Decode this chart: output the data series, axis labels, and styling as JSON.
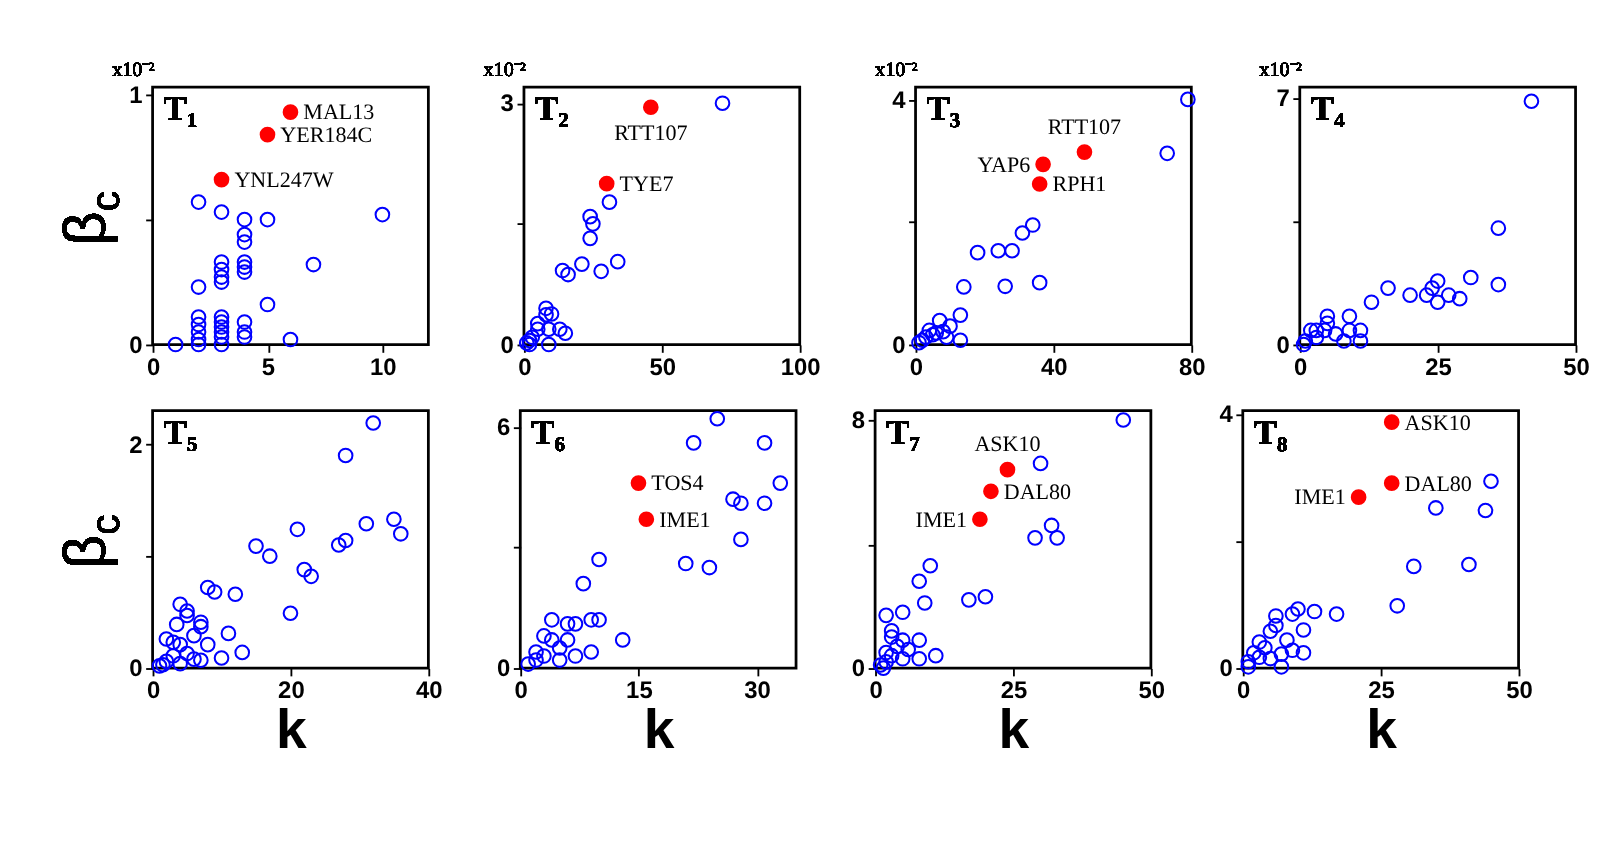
{
  "chart_data": [
    {
      "type": "scatter",
      "title": "T₁",
      "ylabel": "β$_{c}$",
      "marker": "circle",
      "xlim": [
        0,
        12
      ],
      "ylim": [
        0,
        1.03
      ],
      "xticks": [
        0,
        5,
        10
      ],
      "yticks": [
        0,
        {
          "value": 0.5,
          "label": null
        },
        1
      ],
      "annotations": [
        "x10⁻²",
        {
          "text": "MAL13",
          "x": 6,
          "y": 0.93
        },
        {
          "text": "YER184C",
          "x": 5,
          "y": 0.84
        },
        {
          "text": "YNL247W",
          "x": 3,
          "y": 0.66
        }
      ],
      "series": [
        {
          "color": "#0000ff",
          "x": [
            2,
            3,
            4,
            5,
            10,
            4,
            4,
            3,
            3,
            3,
            3,
            4,
            4,
            4,
            7,
            2,
            5,
            2,
            2,
            2,
            2,
            2,
            3,
            3,
            3,
            3,
            3,
            3,
            4,
            4,
            4,
            6,
            1
          ],
          "values": [
            0.57,
            0.53,
            0.5,
            0.5,
            0.52,
            0.44,
            0.41,
            0.33,
            0.3,
            0.27,
            0.25,
            0.33,
            0.31,
            0.29,
            0.32,
            0.23,
            0.16,
            0.11,
            0.08,
            0.05,
            0.02,
            0,
            0.11,
            0.09,
            0.07,
            0.05,
            0.03,
            0,
            0.09,
            0.05,
            0.03,
            0.02,
            0
          ]
        },
        {
          "color": "#ff0000",
          "x": [
            6,
            5,
            3
          ],
          "values": [
            0.93,
            0.84,
            0.66
          ]
        }
      ]
    },
    {
      "type": "scatter",
      "title": "T₂",
      "marker": "circle",
      "xlim": [
        0,
        100
      ],
      "ylim": [
        0,
        3.2
      ],
      "xticks": [
        0,
        50,
        100
      ],
      "yticks": [
        0,
        {
          "value": 1.5,
          "label": null
        },
        3
      ],
      "annotations": [
        "x10⁻²",
        {
          "text": "RTT107",
          "x": 46,
          "y": 2.95
        },
        {
          "text": "TYE7",
          "x": 30,
          "y": 2.0
        }
      ],
      "series": [
        {
          "color": "#0000ff",
          "x": [
            72,
            31,
            24,
            25,
            24,
            21,
            34,
            28,
            14,
            16,
            8,
            8,
            10,
            13,
            15,
            9,
            2,
            3,
            5,
            1,
            2,
            5,
            9
          ],
          "values": [
            3.0,
            1.77,
            1.59,
            1.5,
            1.32,
            1.0,
            1.03,
            0.91,
            0.92,
            0.87,
            0.45,
            0.37,
            0.38,
            0.19,
            0.14,
            0,
            0,
            0.09,
            0.19,
            0.02,
            0.05,
            0.26,
            0.19
          ]
        },
        {
          "color": "#ff0000",
          "x": [
            46,
            30
          ],
          "values": [
            2.95,
            2.0
          ]
        }
      ]
    },
    {
      "type": "scatter",
      "title": "T₃",
      "marker": "circle",
      "xlim": [
        0,
        80
      ],
      "ylim": [
        0,
        4.2
      ],
      "xticks": [
        0,
        40,
        80
      ],
      "yticks": [
        0,
        {
          "value": 2,
          "label": null
        },
        4
      ],
      "annotations": [
        "x10⁻²",
        {
          "text": "RTT107",
          "x": 49,
          "y": 3.14
        },
        {
          "text": "YAP6",
          "x": 37,
          "y": 2.94
        },
        {
          "text": "RPH1",
          "x": 36,
          "y": 2.62
        }
      ],
      "series": [
        {
          "color": "#0000ff",
          "x": [
            79,
            73,
            34,
            31,
            28,
            24,
            18,
            14,
            26,
            36,
            13,
            13,
            7,
            10,
            8,
            5,
            3,
            1,
            2,
            4,
            6,
            9
          ],
          "values": [
            4.0,
            3.12,
            1.95,
            1.82,
            1.53,
            1.53,
            1.5,
            0.94,
            0.95,
            1.01,
            0.48,
            0.07,
            0.39,
            0.3,
            0.21,
            0.16,
            0.12,
            0.03,
            0.07,
            0.23,
            0.19,
            0.12
          ]
        },
        {
          "color": "#ff0000",
          "x": [
            49,
            37,
            36
          ],
          "values": [
            3.14,
            2.94,
            2.62
          ]
        }
      ]
    },
    {
      "type": "scatter",
      "title": "T₄",
      "marker": "circle",
      "xlim": [
        0,
        50
      ],
      "ylim": [
        0,
        7.3
      ],
      "xticks": [
        0,
        25,
        50
      ],
      "yticks": [
        0,
        {
          "value": 3.5,
          "label": null
        },
        7
      ],
      "annotations": [
        "x10⁻²"
      ],
      "series": [
        {
          "color": "#0000ff",
          "x": [
            42,
            36,
            36,
            31,
            29,
            27,
            25,
            25,
            24,
            23,
            20,
            16,
            13,
            9,
            11,
            11,
            5,
            5,
            2,
            3,
            6.5,
            9,
            1,
            0.7,
            8,
            3,
            4.5
          ],
          "values": [
            6.9,
            3.3,
            1.7,
            1.9,
            1.3,
            1.4,
            1.8,
            1.2,
            1.6,
            1.4,
            1.4,
            1.6,
            1.2,
            0.8,
            0.4,
            0.1,
            0.8,
            0.6,
            0.4,
            0.4,
            0.3,
            0.4,
            0.1,
            0,
            0.1,
            0.2,
            0.4
          ]
        }
      ]
    },
    {
      "type": "scatter",
      "title": "T₅",
      "ylabel": "β$_{c}$",
      "xlabel": "k",
      "marker": "circle",
      "xlim": [
        0,
        40
      ],
      "ylim": [
        0,
        2.3
      ],
      "xticks": [
        0,
        20,
        40
      ],
      "yticks": [
        0,
        {
          "value": 1,
          "label": null
        },
        2
      ],
      "series": [
        {
          "color": "#0000ff",
          "x": [
            32,
            28,
            35,
            36,
            31,
            28,
            27,
            21,
            15,
            17,
            22,
            23,
            20,
            8,
            9,
            12,
            11,
            13,
            10,
            4,
            5,
            5,
            3.5,
            7,
            7,
            6,
            2,
            3,
            4,
            8,
            5,
            3,
            2,
            6,
            1,
            1.5,
            7,
            4
          ],
          "values": [
            2.19,
            1.9,
            1.33,
            1.2,
            1.29,
            1.14,
            1.1,
            1.24,
            1.09,
            1.0,
            0.88,
            0.82,
            0.49,
            0.72,
            0.68,
            0.66,
            0.31,
            0.14,
            0.09,
            0.57,
            0.51,
            0.47,
            0.39,
            0.41,
            0.37,
            0.29,
            0.26,
            0.23,
            0.21,
            0.21,
            0.13,
            0.11,
            0.06,
            0.08,
            0.02,
            0.03,
            0.07,
            0.04
          ]
        }
      ]
    },
    {
      "type": "scatter",
      "title": "T₆",
      "xlabel": "k",
      "marker": "circle",
      "xlim": [
        0,
        35
      ],
      "ylim": [
        0,
        6.4
      ],
      "xticks": [
        0,
        15,
        30
      ],
      "yticks": [
        0,
        {
          "value": 3,
          "label": null
        },
        6
      ],
      "annotations": [
        {
          "text": "TOS4",
          "x": 15,
          "y": 4.6
        },
        {
          "text": "IME1",
          "x": 16,
          "y": 3.7
        }
      ],
      "series": [
        {
          "color": "#0000ff",
          "x": [
            25,
            22,
            31,
            27,
            28,
            31,
            28,
            21,
            24,
            10,
            8,
            13,
            9,
            4,
            6,
            7,
            9,
            10,
            3,
            4,
            5,
            2,
            3,
            6,
            7,
            1,
            2,
            5,
            33
          ],
          "values": [
            6.2,
            5.6,
            5.6,
            4.2,
            4.1,
            4.1,
            3.2,
            2.6,
            2.5,
            2.7,
            2.1,
            0.7,
            0.4,
            1.2,
            1.1,
            1.1,
            1.2,
            1.2,
            0.8,
            0.7,
            0.5,
            0.4,
            0.3,
            0.7,
            0.3,
            0.1,
            0.2,
            0.2,
            4.6
          ]
        },
        {
          "color": "#ff0000",
          "x": [
            15,
            16
          ],
          "values": [
            4.6,
            3.7
          ]
        }
      ]
    },
    {
      "type": "scatter",
      "title": "T₇",
      "xlabel": "k",
      "marker": "circle",
      "xlim": [
        0,
        50
      ],
      "ylim": [
        0,
        8.3
      ],
      "xticks": [
        0,
        25,
        50
      ],
      "yticks": [
        0,
        {
          "value": 4,
          "label": null
        },
        8
      ],
      "annotations": [
        {
          "text": "ASK10",
          "x": 24,
          "y": 6.4
        },
        {
          "text": "DAL80",
          "x": 21,
          "y": 5.7
        },
        {
          "text": "IME1",
          "x": 19,
          "y": 4.8
        }
      ],
      "series": [
        {
          "color": "#0000ff",
          "x": [
            45,
            30,
            32,
            29,
            33,
            10,
            8,
            9,
            17,
            20,
            2,
            5,
            3,
            3,
            5,
            8,
            11,
            8,
            4,
            2,
            3,
            6,
            1,
            2,
            5,
            1.5
          ],
          "values": [
            8.0,
            6.6,
            4.6,
            4.2,
            4.2,
            3.3,
            2.8,
            2.1,
            2.2,
            2.3,
            1.7,
            1.8,
            1.2,
            1.0,
            0.9,
            0.9,
            0.4,
            0.3,
            0.7,
            0.5,
            0.4,
            0.6,
            0.1,
            0.2,
            0.3,
            0
          ]
        },
        {
          "color": "#ff0000",
          "x": [
            24,
            21,
            19
          ],
          "values": [
            6.4,
            5.7,
            4.8
          ]
        }
      ]
    },
    {
      "type": "scatter",
      "title": "T₈",
      "xlabel": "k",
      "marker": "circle",
      "xlim": [
        0,
        50
      ],
      "ylim": [
        0,
        4.05
      ],
      "xticks": [
        0,
        25,
        50
      ],
      "yticks": [
        0,
        {
          "value": 2,
          "label": null
        },
        4
      ],
      "annotations": [
        {
          "text": "ASK10",
          "x": 27,
          "y": 3.87
        },
        {
          "text": "DAL80",
          "x": 27,
          "y": 2.91
        },
        {
          "text": "IME1",
          "x": 21,
          "y": 2.69
        }
      ],
      "series": [
        {
          "color": "#0000ff",
          "x": [
            45,
            35,
            44,
            31,
            41,
            28,
            17,
            13,
            10,
            9,
            6,
            11,
            6,
            5,
            8,
            9,
            11,
            3,
            4,
            2,
            7,
            1,
            3,
            5,
            7,
            1
          ],
          "values": [
            2.94,
            2.52,
            2.48,
            1.6,
            1.63,
            0.98,
            0.85,
            0.89,
            0.93,
            0.85,
            0.82,
            0.6,
            0.67,
            0.58,
            0.44,
            0.28,
            0.24,
            0.41,
            0.32,
            0.24,
            0.22,
            0.1,
            0.17,
            0.15,
            0.02,
            0.02
          ]
        },
        {
          "color": "#ff0000",
          "x": [
            27,
            27,
            21
          ],
          "values": [
            3.87,
            2.91,
            2.69
          ]
        }
      ]
    }
  ]
}
